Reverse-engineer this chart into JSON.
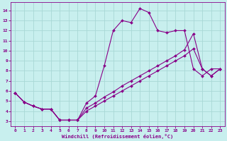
{
  "xlabel": "Windchill (Refroidissement éolien,°C)",
  "bg_color": "#c8efee",
  "grid_color": "#a8d8d6",
  "line_color": "#880088",
  "x_ticks": [
    0,
    1,
    2,
    3,
    4,
    5,
    6,
    7,
    8,
    9,
    10,
    11,
    12,
    13,
    14,
    15,
    16,
    17,
    18,
    19,
    20,
    21,
    22,
    23
  ],
  "y_ticks": [
    3,
    4,
    5,
    6,
    7,
    8,
    9,
    10,
    11,
    12,
    13,
    14
  ],
  "ylim": [
    2.5,
    14.8
  ],
  "xlim": [
    -0.5,
    23.5
  ],
  "line1_x": [
    0,
    1,
    2,
    3,
    4,
    5,
    6,
    7,
    8,
    9,
    10,
    11,
    12,
    13,
    14,
    15,
    16,
    17,
    18,
    19,
    20,
    21,
    22,
    23
  ],
  "line1_y": [
    5.8,
    4.9,
    4.5,
    4.2,
    4.2,
    3.1,
    3.1,
    3.1,
    4.8,
    5.5,
    8.5,
    12.0,
    13.0,
    12.8,
    14.2,
    13.8,
    12.0,
    11.8,
    12.0,
    12.0,
    8.2,
    7.5,
    8.2,
    8.2
  ],
  "line2_x": [
    0,
    1,
    2,
    3,
    4,
    5,
    6,
    7,
    8,
    9,
    10,
    11,
    12,
    13,
    14,
    15,
    16,
    17,
    18,
    19,
    20,
    21,
    22,
    23
  ],
  "line2_y": [
    5.8,
    4.9,
    4.5,
    4.2,
    4.2,
    3.1,
    3.1,
    3.1,
    4.3,
    4.8,
    5.4,
    5.9,
    6.5,
    7.0,
    7.5,
    8.0,
    8.5,
    9.0,
    9.5,
    10.1,
    11.7,
    8.2,
    7.5,
    8.2
  ],
  "line3_x": [
    0,
    1,
    2,
    3,
    4,
    5,
    6,
    7,
    8,
    9,
    10,
    11,
    12,
    13,
    14,
    15,
    16,
    17,
    18,
    19,
    20,
    21,
    22,
    23
  ],
  "line3_y": [
    5.8,
    4.9,
    4.5,
    4.2,
    4.2,
    3.1,
    3.1,
    3.1,
    4.0,
    4.5,
    5.0,
    5.5,
    6.0,
    6.5,
    7.0,
    7.5,
    8.0,
    8.5,
    9.0,
    9.5,
    10.2,
    8.2,
    7.5,
    8.2
  ]
}
